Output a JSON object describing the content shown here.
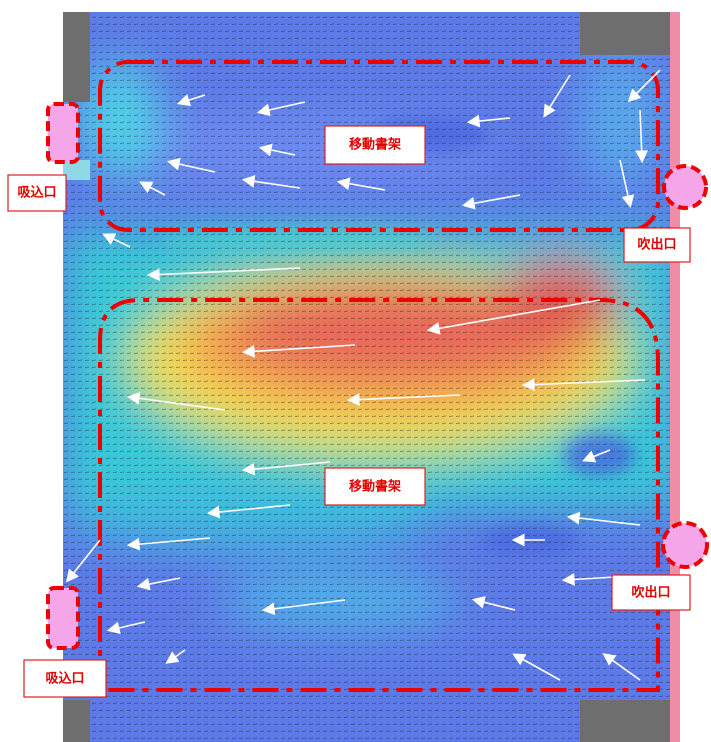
{
  "annotations": {
    "shelf_top": "移動書架",
    "shelf_bottom": "移動書架",
    "inlet_top": "吸込口",
    "inlet_bottom": "吸込口",
    "outlet_top": "吹出口",
    "outlet_bottom": "吹出口"
  }
}
